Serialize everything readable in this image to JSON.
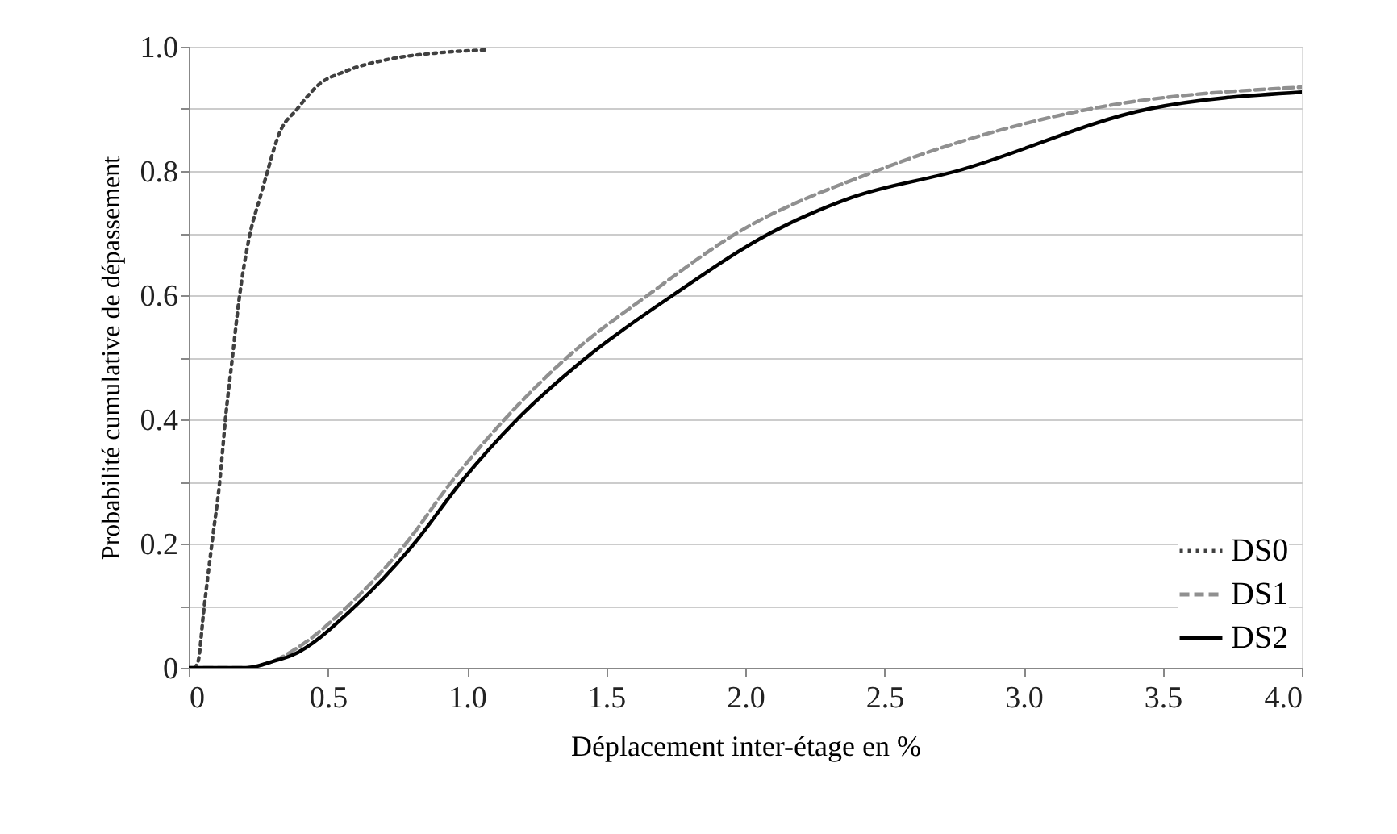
{
  "chart_data": {
    "type": "line",
    "xlabel": "Déplacement inter-étage en %",
    "ylabel": "Probabilité cumulative de dépassement",
    "xlim": [
      0,
      4.0
    ],
    "ylim": [
      0,
      1.0
    ],
    "xticks": [
      0,
      {
        "value": 0.5,
        "label": "0.5"
      },
      {
        "value": 1,
        "label": "1.0"
      },
      {
        "value": 1.5,
        "label": "1.5"
      },
      {
        "value": 2,
        "label": "2.0"
      },
      {
        "value": 2.5,
        "label": "2.5"
      },
      {
        "value": 3,
        "label": "3.0"
      },
      {
        "value": 3.5,
        "label": "3.5"
      },
      {
        "value": 4,
        "label": "4.0"
      }
    ],
    "yticks": [
      0,
      {
        "value": 0.1,
        "label": null
      },
      0.2,
      {
        "value": 0.3,
        "label": null
      },
      0.4,
      {
        "value": 0.5,
        "label": null
      },
      0.6,
      {
        "value": 0.7,
        "label": null
      },
      0.8,
      {
        "value": 0.9,
        "label": null
      },
      {
        "value": 1,
        "label": "1.0"
      }
    ],
    "grid": "y",
    "legend": "bottom right",
    "series": [
      {
        "name": "DS0",
        "color": "#404040",
        "line_style": "dotted",
        "x": [
          0.02,
          0.034,
          0.053,
          0.086,
          0.109,
          0.134,
          0.157,
          0.18,
          0.216,
          0.258,
          0.277,
          0.325,
          0.39,
          0.47,
          0.56,
          0.72,
          0.89,
          1.07
        ],
        "values": [
          0,
          0.011,
          0.088,
          0.21,
          0.29,
          0.41,
          0.5,
          0.59,
          0.69,
          0.76,
          0.79,
          0.86,
          0.9,
          0.94,
          0.96,
          0.98,
          0.99,
          0.995
        ]
      },
      {
        "name": "DS1",
        "color": "#909090",
        "line_style": "dashed",
        "x": [
          0,
          0.2,
          0.3,
          0.4,
          0.573,
          0.78,
          0.945,
          1.135,
          1.36,
          1.65,
          1.97,
          2.47,
          3.24,
          4.0
        ],
        "values": [
          0,
          0,
          0.01,
          0.035,
          0.1,
          0.2,
          0.3,
          0.4,
          0.5,
          0.6,
          0.7,
          0.8,
          0.9,
          0.935
        ]
      },
      {
        "name": "DS2",
        "color": "#000000",
        "line_style": "solid",
        "x": [
          0,
          0.21,
          0.3,
          0.37,
          0.6,
          0.81,
          0.98,
          1.18,
          1.43,
          1.74,
          2.09,
          2.38,
          2.76,
          3.45,
          4.0
        ],
        "values": [
          0,
          0,
          0.01,
          0.02,
          0.1,
          0.2,
          0.3,
          0.4,
          0.5,
          0.6,
          0.7,
          0.757,
          0.8,
          0.9,
          0.927
        ]
      }
    ]
  }
}
